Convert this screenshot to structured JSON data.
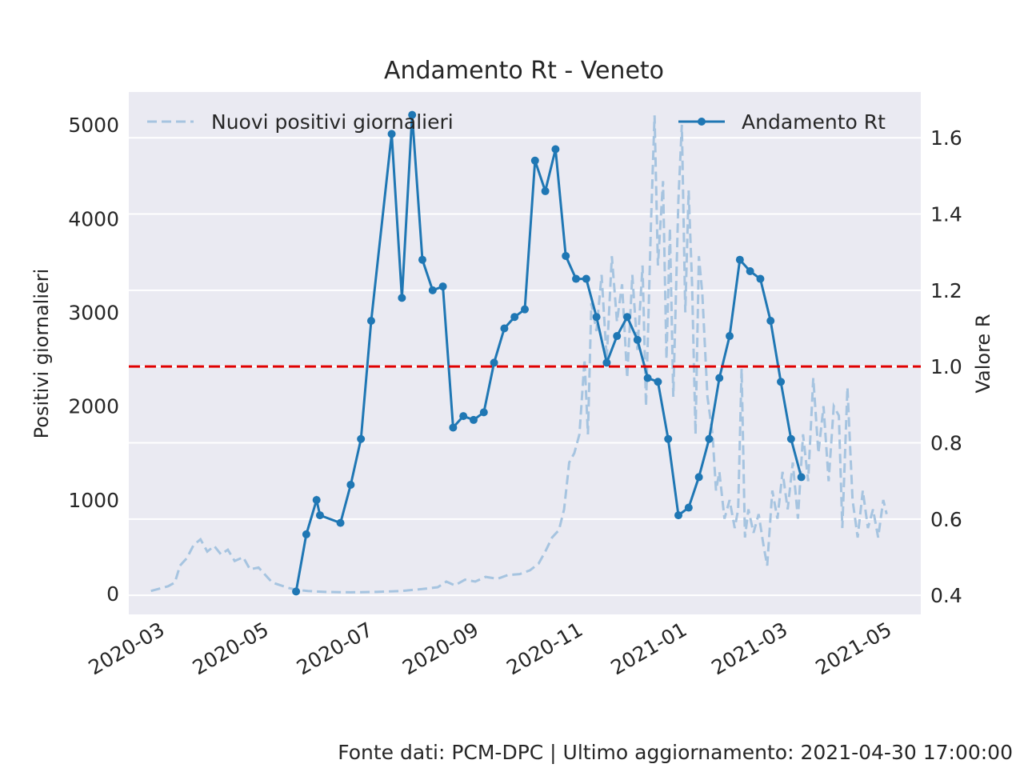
{
  "chart_data": {
    "type": "line",
    "title": "Andamento Rt - Veneto",
    "ylabel": "Positivi giornalieri",
    "y2label": "Valore R",
    "ylim": [
      -220,
      5350
    ],
    "y2lim": [
      0.35,
      1.72
    ],
    "xlim": [
      "2020-02-11",
      "2021-05-20"
    ],
    "yticks": [
      0,
      1000,
      2000,
      3000,
      4000,
      5000
    ],
    "y2ticks": [
      "0.4",
      "0.6",
      "0.8",
      "1.0",
      "1.2",
      "1.4",
      "1.6"
    ],
    "xticks": [
      "2020-03-01",
      "2020-05-01",
      "2020-07-01",
      "2020-09-01",
      "2020-11-01",
      "2021-01-01",
      "2021-03-01",
      "2021-05-01"
    ],
    "xticklabels": [
      "2020-03",
      "2020-05",
      "2020-07",
      "2020-09",
      "2020-11",
      "2021-01",
      "2021-03",
      "2021-05"
    ],
    "threshold": 1.0,
    "threshold_color": "#e00000",
    "grid": true,
    "background": "#eaeaf2",
    "series": [
      {
        "name": "Nuovi positivi giornalieri",
        "axis": "left",
        "style": "dashed",
        "color": "#a6c4e0",
        "legend_position": "top-left",
        "points": [
          [
            "2020-02-24",
            30
          ],
          [
            "2020-03-01",
            60
          ],
          [
            "2020-03-05",
            80
          ],
          [
            "2020-03-09",
            120
          ],
          [
            "2020-03-12",
            300
          ],
          [
            "2020-03-16",
            380
          ],
          [
            "2020-03-20",
            520
          ],
          [
            "2020-03-24",
            580
          ],
          [
            "2020-03-28",
            450
          ],
          [
            "2020-04-01",
            510
          ],
          [
            "2020-04-05",
            420
          ],
          [
            "2020-04-09",
            470
          ],
          [
            "2020-04-13",
            350
          ],
          [
            "2020-04-18",
            390
          ],
          [
            "2020-04-22",
            260
          ],
          [
            "2020-04-27",
            280
          ],
          [
            "2020-05-01",
            200
          ],
          [
            "2020-05-05",
            120
          ],
          [
            "2020-05-10",
            90
          ],
          [
            "2020-05-15",
            60
          ],
          [
            "2020-05-20",
            40
          ],
          [
            "2020-05-26",
            30
          ],
          [
            "2020-06-05",
            20
          ],
          [
            "2020-06-20",
            15
          ],
          [
            "2020-07-05",
            20
          ],
          [
            "2020-07-20",
            30
          ],
          [
            "2020-08-01",
            50
          ],
          [
            "2020-08-10",
            70
          ],
          [
            "2020-08-15",
            130
          ],
          [
            "2020-08-20",
            90
          ],
          [
            "2020-08-26",
            150
          ],
          [
            "2020-09-01",
            130
          ],
          [
            "2020-09-07",
            180
          ],
          [
            "2020-09-14",
            160
          ],
          [
            "2020-09-20",
            200
          ],
          [
            "2020-09-27",
            210
          ],
          [
            "2020-10-03",
            250
          ],
          [
            "2020-10-08",
            320
          ],
          [
            "2020-10-12",
            450
          ],
          [
            "2020-10-16",
            600
          ],
          [
            "2020-10-20",
            680
          ],
          [
            "2020-10-23",
            900
          ],
          [
            "2020-10-26",
            1400
          ],
          [
            "2020-10-29",
            1500
          ],
          [
            "2020-11-01",
            1700
          ],
          [
            "2020-11-04",
            2500
          ],
          [
            "2020-11-06",
            1700
          ],
          [
            "2020-11-08",
            3100
          ],
          [
            "2020-11-11",
            2800
          ],
          [
            "2020-11-14",
            3400
          ],
          [
            "2020-11-17",
            2500
          ],
          [
            "2020-11-20",
            3600
          ],
          [
            "2020-11-23",
            2900
          ],
          [
            "2020-11-26",
            3300
          ],
          [
            "2020-11-29",
            2300
          ],
          [
            "2020-12-02",
            3400
          ],
          [
            "2020-12-05",
            2600
          ],
          [
            "2020-12-08",
            3500
          ],
          [
            "2020-12-10",
            2000
          ],
          [
            "2020-12-13",
            4000
          ],
          [
            "2020-12-15",
            5100
          ],
          [
            "2020-12-17",
            3500
          ],
          [
            "2020-12-20",
            4400
          ],
          [
            "2020-12-22",
            2500
          ],
          [
            "2020-12-24",
            3900
          ],
          [
            "2020-12-26",
            2100
          ],
          [
            "2020-12-29",
            4200
          ],
          [
            "2020-12-31",
            5000
          ],
          [
            "2021-01-02",
            3000
          ],
          [
            "2021-01-04",
            4300
          ],
          [
            "2021-01-06",
            3300
          ],
          [
            "2021-01-08",
            1700
          ],
          [
            "2021-01-10",
            3600
          ],
          [
            "2021-01-12",
            3200
          ],
          [
            "2021-01-15",
            2100
          ],
          [
            "2021-01-18",
            1700
          ],
          [
            "2021-01-20",
            1100
          ],
          [
            "2021-01-22",
            1300
          ],
          [
            "2021-01-25",
            800
          ],
          [
            "2021-01-28",
            1000
          ],
          [
            "2021-01-31",
            700
          ],
          [
            "2021-02-02",
            900
          ],
          [
            "2021-02-04",
            2400
          ],
          [
            "2021-02-06",
            600
          ],
          [
            "2021-02-08",
            900
          ],
          [
            "2021-02-11",
            650
          ],
          [
            "2021-02-14",
            850
          ],
          [
            "2021-02-17",
            500
          ],
          [
            "2021-02-19",
            300
          ],
          [
            "2021-02-22",
            1100
          ],
          [
            "2021-02-25",
            800
          ],
          [
            "2021-02-28",
            1300
          ],
          [
            "2021-03-03",
            900
          ],
          [
            "2021-03-06",
            1400
          ],
          [
            "2021-03-09",
            800
          ],
          [
            "2021-03-12",
            1700
          ],
          [
            "2021-03-15",
            1200
          ],
          [
            "2021-03-18",
            2300
          ],
          [
            "2021-03-21",
            1500
          ],
          [
            "2021-03-24",
            2000
          ],
          [
            "2021-03-27",
            1200
          ],
          [
            "2021-03-30",
            2000
          ],
          [
            "2021-04-02",
            1900
          ],
          [
            "2021-04-04",
            700
          ],
          [
            "2021-04-07",
            2200
          ],
          [
            "2021-04-10",
            1000
          ],
          [
            "2021-04-13",
            600
          ],
          [
            "2021-04-16",
            1100
          ],
          [
            "2021-04-19",
            700
          ],
          [
            "2021-04-22",
            900
          ],
          [
            "2021-04-25",
            600
          ],
          [
            "2021-04-28",
            1000
          ],
          [
            "2021-04-30",
            850
          ]
        ]
      },
      {
        "name": "Andamento Rt",
        "axis": "right",
        "style": "solid-markers",
        "color": "#1f77b4",
        "legend_position": "top-right",
        "points": [
          [
            "2020-05-19",
            0.41
          ],
          [
            "2020-05-25",
            0.56
          ],
          [
            "2020-05-31",
            0.65
          ],
          [
            "2020-06-02",
            0.61
          ],
          [
            "2020-06-14",
            0.59
          ],
          [
            "2020-06-20",
            0.69
          ],
          [
            "2020-06-26",
            0.81
          ],
          [
            "2020-07-02",
            1.12
          ],
          [
            "2020-07-14",
            1.61
          ],
          [
            "2020-07-20",
            1.18
          ],
          [
            "2020-07-26",
            1.66
          ],
          [
            "2020-08-01",
            1.28
          ],
          [
            "2020-08-07",
            1.2
          ],
          [
            "2020-08-13",
            1.21
          ],
          [
            "2020-08-19",
            0.84
          ],
          [
            "2020-08-25",
            0.87
          ],
          [
            "2020-08-31",
            0.86
          ],
          [
            "2020-09-06",
            0.88
          ],
          [
            "2020-09-12",
            1.01
          ],
          [
            "2020-09-18",
            1.1
          ],
          [
            "2020-09-24",
            1.13
          ],
          [
            "2020-09-30",
            1.15
          ],
          [
            "2020-10-06",
            1.54
          ],
          [
            "2020-10-12",
            1.46
          ],
          [
            "2020-10-18",
            1.57
          ],
          [
            "2020-10-24",
            1.29
          ],
          [
            "2020-10-30",
            1.23
          ],
          [
            "2020-11-05",
            1.23
          ],
          [
            "2020-11-11",
            1.13
          ],
          [
            "2020-11-17",
            1.01
          ],
          [
            "2020-11-23",
            1.08
          ],
          [
            "2020-11-29",
            1.13
          ],
          [
            "2020-12-05",
            1.07
          ],
          [
            "2020-12-11",
            0.97
          ],
          [
            "2020-12-17",
            0.96
          ],
          [
            "2020-12-23",
            0.81
          ],
          [
            "2020-12-29",
            0.61
          ],
          [
            "2021-01-04",
            0.63
          ],
          [
            "2021-01-10",
            0.71
          ],
          [
            "2021-01-16",
            0.81
          ],
          [
            "2021-01-22",
            0.97
          ],
          [
            "2021-01-28",
            1.08
          ],
          [
            "2021-02-03",
            1.28
          ],
          [
            "2021-02-09",
            1.25
          ],
          [
            "2021-02-15",
            1.23
          ],
          [
            "2021-02-21",
            1.12
          ],
          [
            "2021-02-27",
            0.96
          ],
          [
            "2021-03-05",
            0.81
          ],
          [
            "2021-03-11",
            0.71
          ]
        ]
      }
    ]
  },
  "footer": "Fonte dati: PCM-DPC | Ultimo aggiornamento: 2021-04-30 17:00:00"
}
